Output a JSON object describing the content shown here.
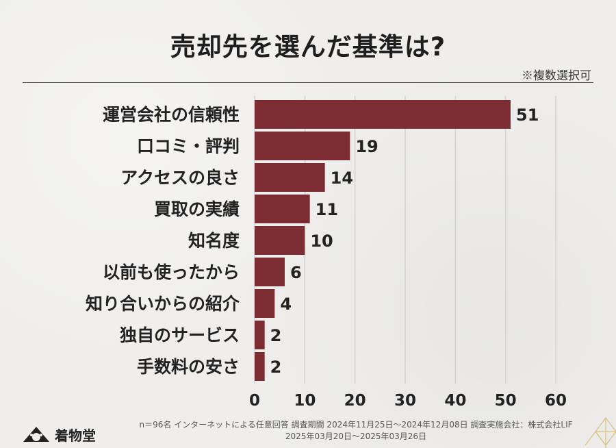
{
  "header": {
    "title": "売却先を選んだ基準は?",
    "note": "※複数選択可"
  },
  "footer": {
    "line1": "n＝96名 インターネットによる任意回答 調査期間 2024年11月25日〜2024年12月08日 調査実施会社：株式会社LIF",
    "line2": "2025年03月20日〜2025年03月26日"
  },
  "brand": {
    "logo_text": "着物堂"
  },
  "colors": {
    "bar": "#7b2d33",
    "background": "#efeeec",
    "text": "#222222",
    "grid": "#d3d2d0"
  },
  "chart_data": {
    "type": "bar",
    "orientation": "horizontal",
    "categories": [
      "運営会社の信頼性",
      "口コミ・評判",
      "アクセスの良さ",
      "買取の実績",
      "知名度",
      "以前も使ったから",
      "知り合いからの紹介",
      "独自のサービス",
      "手数料の安さ"
    ],
    "values": [
      51,
      19,
      14,
      11,
      10,
      6,
      4,
      2,
      2
    ],
    "xlim": [
      0,
      60
    ],
    "xticks": [
      0,
      10,
      20,
      30,
      40,
      50,
      60
    ],
    "grid": true,
    "data_labels": true
  }
}
